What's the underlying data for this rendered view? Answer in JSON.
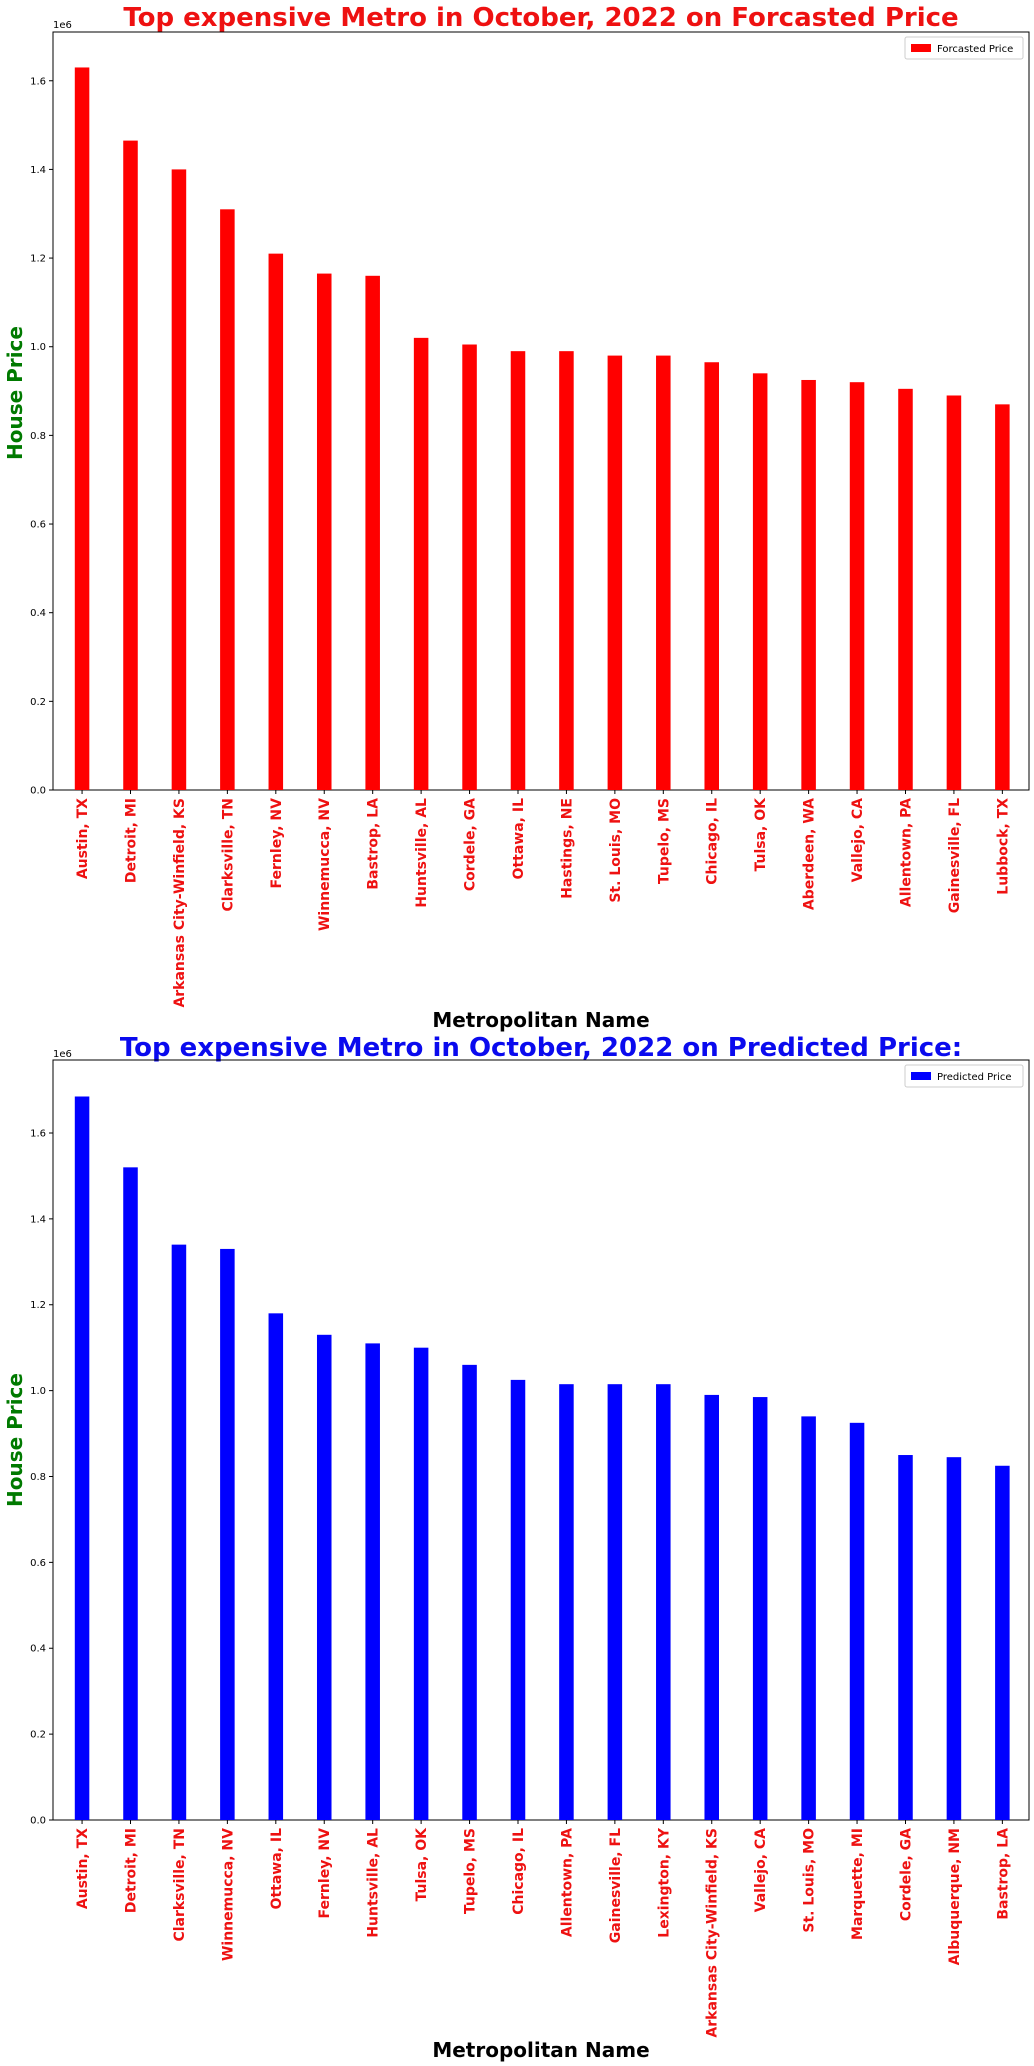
{
  "colors": {
    "tick_label": "#ee1111",
    "ylabel": "#007a00",
    "xlabel": "#000000"
  },
  "chart_data": [
    {
      "type": "bar",
      "title": "Top expensive Metro in October, 2022 on Forcasted Price",
      "title_color": "#ee1111",
      "xlabel": "Metropolitan Name",
      "ylabel": "House Price",
      "offset_text": "1e6",
      "ylim": [
        0,
        1.71
      ],
      "yticks": [
        0,
        0.2,
        0.4,
        0.6,
        0.8,
        1.0,
        1.2,
        1.4,
        1.6
      ],
      "ytick_labels": [
        "0.0",
        "0.2",
        "0.4",
        "0.6",
        "0.8",
        "1.0",
        "1.2",
        "1.4",
        "1.6"
      ],
      "legend": "top-right",
      "grid": false,
      "categories": [
        "Austin, TX",
        "Detroit, MI",
        "Arkansas City-Winfield, KS",
        "Clarksville, TN",
        "Fernley, NV",
        "Winnemucca, NV",
        "Bastrop, LA",
        "Huntsville, AL",
        "Cordele, GA",
        "Ottawa, IL",
        "Hastings, NE",
        "St. Louis, MO",
        "Tupelo, MS",
        "Chicago, IL",
        "Tulsa, OK",
        "Aberdeen, WA",
        "Vallejo, CA",
        "Allentown, PA",
        "Gainesville, FL",
        "Lubbock, TX"
      ],
      "series": [
        {
          "name": "Forcasted Price",
          "color": "#ff0000",
          "values": [
            1.63,
            1.465,
            1.4,
            1.31,
            1.21,
            1.165,
            1.16,
            1.02,
            1.005,
            0.99,
            0.99,
            0.98,
            0.98,
            0.965,
            0.94,
            0.925,
            0.92,
            0.905,
            0.89,
            0.87
          ]
        }
      ]
    },
    {
      "type": "bar",
      "title": "Top expensive Metro in October, 2022 on Predicted Price:",
      "title_color": "#0a0aee",
      "xlabel": "Metropolitan Name",
      "ylabel": "House Price",
      "offset_text": "1e6",
      "ylim": [
        0,
        1.77
      ],
      "yticks": [
        0,
        0.2,
        0.4,
        0.6,
        0.8,
        1.0,
        1.2,
        1.4,
        1.6
      ],
      "ytick_labels": [
        "0.0",
        "0.2",
        "0.4",
        "0.6",
        "0.8",
        "1.0",
        "1.2",
        "1.4",
        "1.6"
      ],
      "legend": "top-right",
      "grid": false,
      "categories": [
        "Austin, TX",
        "Detroit, MI",
        "Clarksville, TN",
        "Winnemucca, NV",
        "Ottawa, IL",
        "Fernley, NV",
        "Huntsville, AL",
        "Tulsa, OK",
        "Tupelo, MS",
        "Chicago, IL",
        "Allentown, PA",
        "Gainesville, FL",
        "Lexington, KY",
        "Arkansas City-Winfield, KS",
        "Vallejo, CA",
        "St. Louis, MO",
        "Marquette, MI",
        "Cordele, GA",
        "Albuquerque, NM",
        "Bastrop, LA"
      ],
      "series": [
        {
          "name": "Predicted Price",
          "color": "#0000ff",
          "values": [
            1.685,
            1.52,
            1.34,
            1.33,
            1.18,
            1.13,
            1.11,
            1.1,
            1.06,
            1.025,
            1.015,
            1.015,
            1.015,
            0.99,
            0.985,
            0.94,
            0.925,
            0.85,
            0.845,
            0.825
          ]
        }
      ]
    }
  ]
}
